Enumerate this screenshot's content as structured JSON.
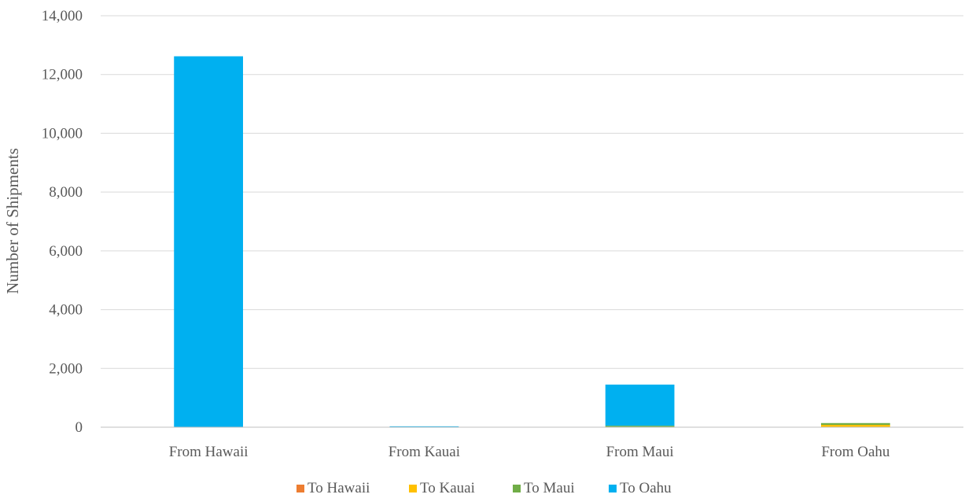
{
  "chart_data": {
    "type": "bar",
    "stacked": true,
    "title": "",
    "xlabel": "",
    "ylabel": "Number of Shipments",
    "ylim": [
      0,
      14000
    ],
    "yticks": [
      0,
      2000,
      4000,
      6000,
      8000,
      10000,
      12000,
      14000
    ],
    "ytick_labels": [
      "0",
      "2,000",
      "4,000",
      "6,000",
      "8,000",
      "10,000",
      "12,000",
      "14,000"
    ],
    "categories": [
      "From Hawaii",
      "From Kauai",
      "From Maui",
      "From Oahu"
    ],
    "series": [
      {
        "name": "To Hawaii",
        "color": "#ED7D31",
        "values": [
          0,
          0,
          0,
          0
        ]
      },
      {
        "name": "To Kauai",
        "color": "#FFC000",
        "values": [
          0,
          0,
          0,
          80
        ]
      },
      {
        "name": "To Maui",
        "color": "#70AD47",
        "values": [
          0,
          0,
          50,
          60
        ]
      },
      {
        "name": "To Oahu",
        "color": "#00B0F0",
        "values": [
          12620,
          30,
          1400,
          0
        ]
      }
    ],
    "grid": true,
    "legend_position": "bottom"
  }
}
